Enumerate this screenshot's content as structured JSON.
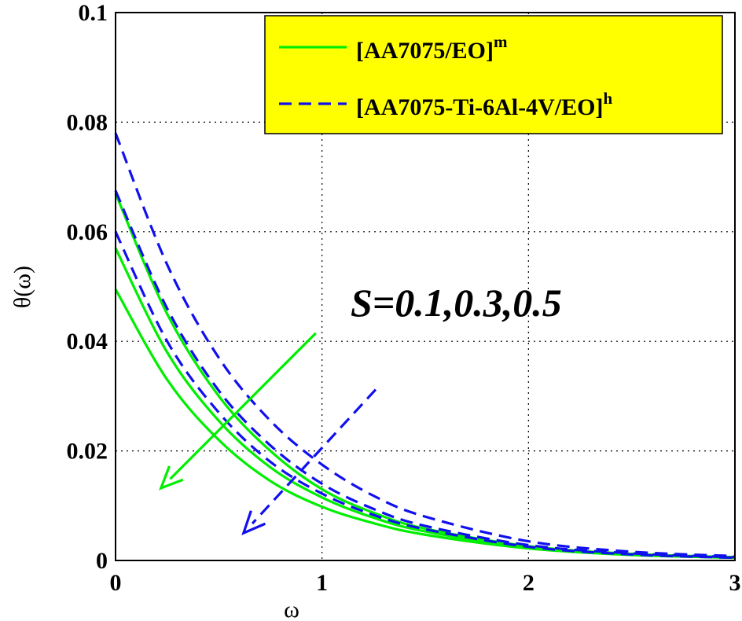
{
  "chart_data": {
    "type": "line",
    "xlabel": "ω",
    "ylabel": "θ(ω)",
    "xlim": [
      0,
      3
    ],
    "ylim": [
      0,
      0.1
    ],
    "x_ticks": [
      "0",
      "1",
      "2",
      "3"
    ],
    "y_ticks": [
      "0",
      "0.02",
      "0.04",
      "0.06",
      "0.08",
      "0.1"
    ],
    "grid": true,
    "legend_position": "top-right",
    "legend_background": "#ffff00",
    "annotation": "S=0.1,0.3,0.5",
    "legend": [
      {
        "base": "[AA7075/EO]",
        "sup": "m",
        "color": "#00ee00",
        "dash": "solid"
      },
      {
        "base": "[AA7075-Ti-6Al-4V/EO]",
        "sup": "h",
        "color": "#1010ee",
        "dash": "dashed"
      }
    ],
    "series": [
      {
        "group": "[AA7075/EO]m",
        "S": 0.1,
        "color": "#00ee00",
        "dash": "solid",
        "x": [
          0,
          0.25,
          0.5,
          0.75,
          1.0,
          1.25,
          1.5,
          2.0,
          2.5,
          3.0
        ],
        "y": [
          0.067,
          0.045,
          0.03,
          0.02,
          0.013,
          0.0087,
          0.0058,
          0.0026,
          0.0012,
          0.0006
        ]
      },
      {
        "group": "[AA7075/EO]m",
        "S": 0.3,
        "color": "#00ee00",
        "dash": "solid",
        "x": [
          0,
          0.25,
          0.5,
          0.75,
          1.0,
          1.25,
          1.5,
          2.0,
          2.5,
          3.0
        ],
        "y": [
          0.057,
          0.038,
          0.0255,
          0.017,
          0.0115,
          0.0078,
          0.0053,
          0.0024,
          0.0011,
          0.0005
        ]
      },
      {
        "group": "[AA7075/EO]m",
        "S": 0.5,
        "color": "#00ee00",
        "dash": "solid",
        "x": [
          0,
          0.25,
          0.5,
          0.75,
          1.0,
          1.25,
          1.5,
          2.0,
          2.5,
          3.0
        ],
        "y": [
          0.0495,
          0.033,
          0.022,
          0.0145,
          0.0098,
          0.0068,
          0.0047,
          0.0022,
          0.001,
          0.0005
        ]
      },
      {
        "group": "[AA7075-Ti-6Al-4V/EO]h",
        "S": 0.1,
        "color": "#1010ee",
        "dash": "dashed",
        "x": [
          0,
          0.25,
          0.5,
          0.75,
          1.0,
          1.25,
          1.5,
          2.0,
          2.5,
          3.0
        ],
        "y": [
          0.078,
          0.054,
          0.037,
          0.0255,
          0.0175,
          0.0118,
          0.008,
          0.0035,
          0.0016,
          0.0008
        ]
      },
      {
        "group": "[AA7075-Ti-6Al-4V/EO]h",
        "S": 0.3,
        "color": "#1010ee",
        "dash": "dashed",
        "x": [
          0,
          0.25,
          0.5,
          0.75,
          1.0,
          1.25,
          1.5,
          2.0,
          2.5,
          3.0
        ],
        "y": [
          0.0675,
          0.046,
          0.031,
          0.021,
          0.014,
          0.0094,
          0.0063,
          0.0028,
          0.0013,
          0.0006
        ]
      },
      {
        "group": "[AA7075-Ti-6Al-4V/EO]h",
        "S": 0.5,
        "color": "#1010ee",
        "dash": "dashed",
        "x": [
          0,
          0.25,
          0.5,
          0.75,
          1.0,
          1.25,
          1.5,
          2.0,
          2.5,
          3.0
        ],
        "y": [
          0.06,
          0.04,
          0.027,
          0.018,
          0.0122,
          0.0083,
          0.0057,
          0.0025,
          0.0011,
          0.0005
        ]
      }
    ],
    "arrows": [
      {
        "color": "#00ee00",
        "dash": "solid",
        "from": [
          0.97,
          0.0415
        ],
        "to": [
          0.22,
          0.0132
        ]
      },
      {
        "color": "#1010ee",
        "dash": "dashed",
        "from": [
          1.26,
          0.0312
        ],
        "to": [
          0.62,
          0.005
        ]
      }
    ]
  }
}
